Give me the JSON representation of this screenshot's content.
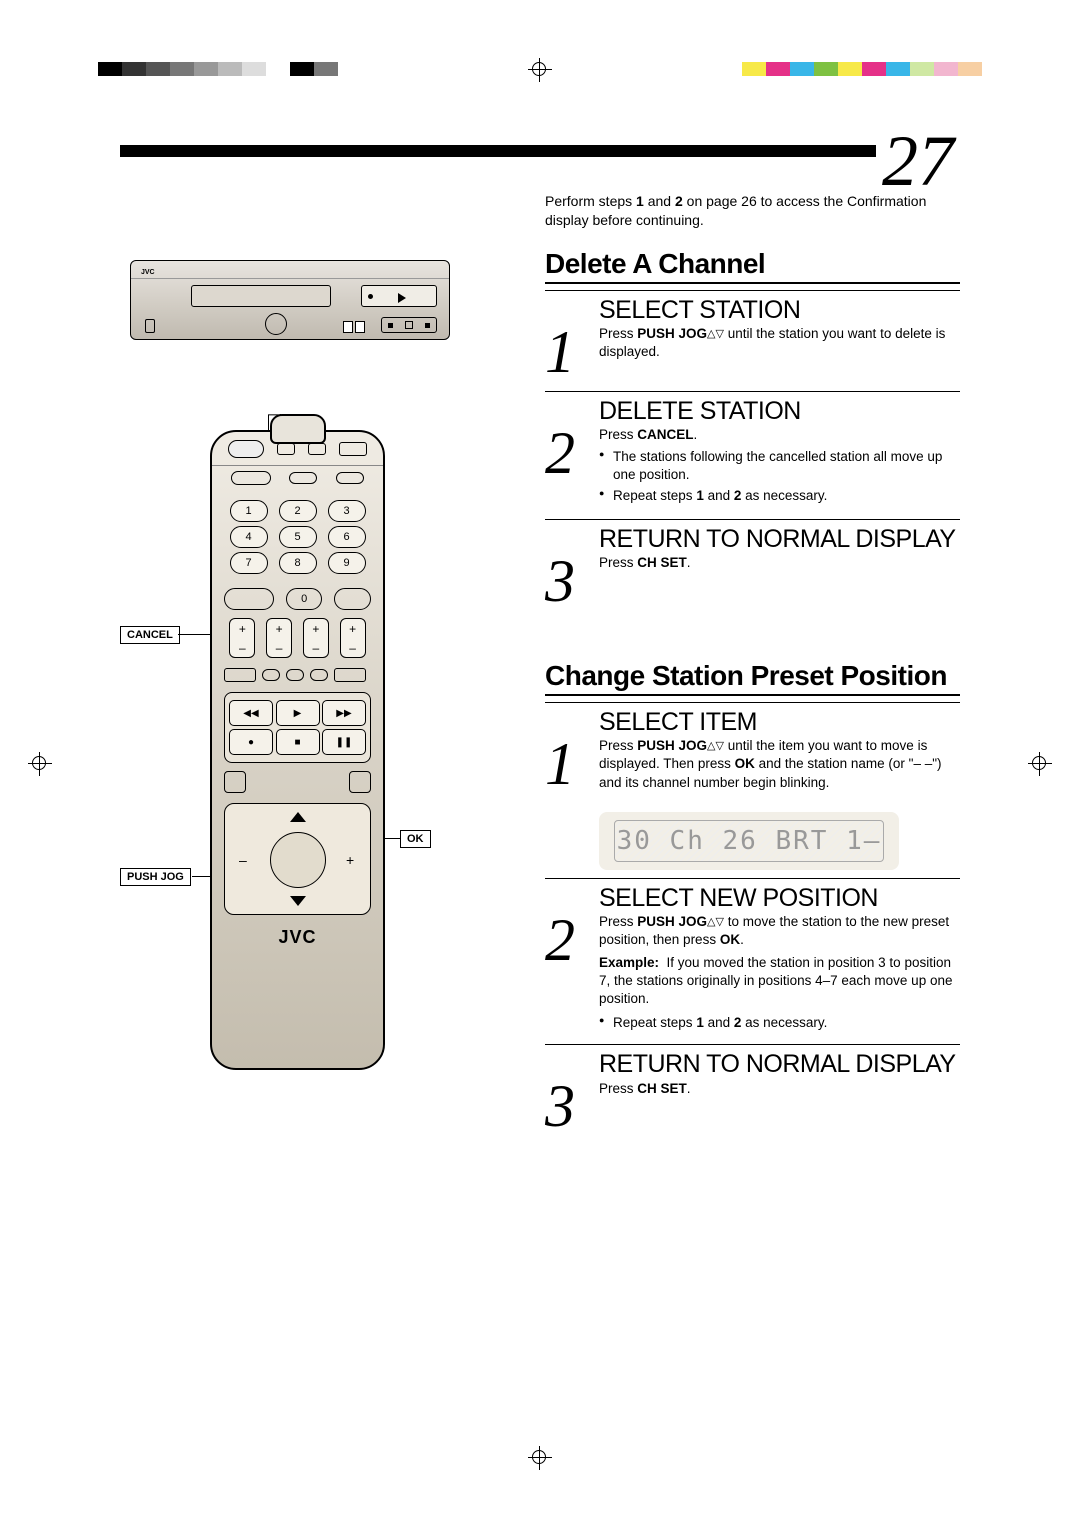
{
  "page_number": "27",
  "color_bars": {
    "left": [
      "#000000",
      "#333333",
      "#555555",
      "#777777",
      "#999999",
      "#bbbbbb",
      "#dddddd",
      "#ffffff",
      "#000000",
      "#777777"
    ],
    "right": [
      "#f7e948",
      "#e53188",
      "#39b6e8",
      "#7ec142",
      "#f7e948",
      "#e53188",
      "#39b6e8",
      "#cfe8a3",
      "#f2b6cf",
      "#f7cfa3"
    ]
  },
  "intro": {
    "prefix": "Perform steps ",
    "bold1": "1",
    "mid1": " and ",
    "bold2": "2",
    "suffix": " on page 26 to access the Confirmation display before continuing."
  },
  "remote_labels": {
    "ch_set": "CH SET",
    "cancel": "CANCEL",
    "ok": "OK",
    "push_jog": "PUSH JOG",
    "brand": "JVC",
    "keypad": [
      [
        "1",
        "2",
        "3"
      ],
      [
        "4",
        "5",
        "6"
      ],
      [
        "7",
        "8",
        "9"
      ]
    ],
    "zero": "0"
  },
  "section1": {
    "title": "Delete A Channel",
    "steps": [
      {
        "num": "1",
        "title": "SELECT STATION",
        "text_prefix": "Press ",
        "bold": "PUSH JOG",
        "text_suffix": " until the station you want to delete is displayed.",
        "arrows": "△▽"
      },
      {
        "num": "2",
        "title": "DELETE STATION",
        "text_prefix": "Press ",
        "bold": "CANCEL",
        "text_suffix": ".",
        "bullets": [
          "The stations following the cancelled station all move up one position.",
          "Repeat steps 1 and 2 as necessary."
        ]
      },
      {
        "num": "3",
        "title": "RETURN TO NORMAL DISPLAY",
        "text_prefix": "Press ",
        "bold": "CH SET",
        "text_suffix": "."
      }
    ]
  },
  "section2": {
    "title": "Change Station Preset Position",
    "display_text": "30 Ch 26 BRT 1–",
    "steps": [
      {
        "num": "1",
        "title": "SELECT ITEM",
        "text": "Press PUSH JOG△▽ until the item you want to move is displayed. Then press OK and the station name (or \"– –\") and its channel number begin blinking.",
        "bold_terms": [
          "PUSH JOG",
          "OK"
        ]
      },
      {
        "num": "2",
        "title": "SELECT NEW POSITION",
        "text": "Press PUSH JOG△▽ to move the station to the new preset position, then press OK.",
        "bold_terms": [
          "PUSH JOG",
          "OK"
        ],
        "example_label": "Example:",
        "example_text": "If you moved the station in position 3 to position 7, the stations originally in positions 4–7 each move up one position.",
        "post_bullet": "Repeat steps 1 and 2 as necessary.",
        "post_bullet_bold": [
          "1",
          "2"
        ]
      },
      {
        "num": "3",
        "title": "RETURN TO NORMAL DISPLAY",
        "text_prefix": "Press ",
        "bold": "CH SET",
        "text_suffix": "."
      }
    ]
  }
}
